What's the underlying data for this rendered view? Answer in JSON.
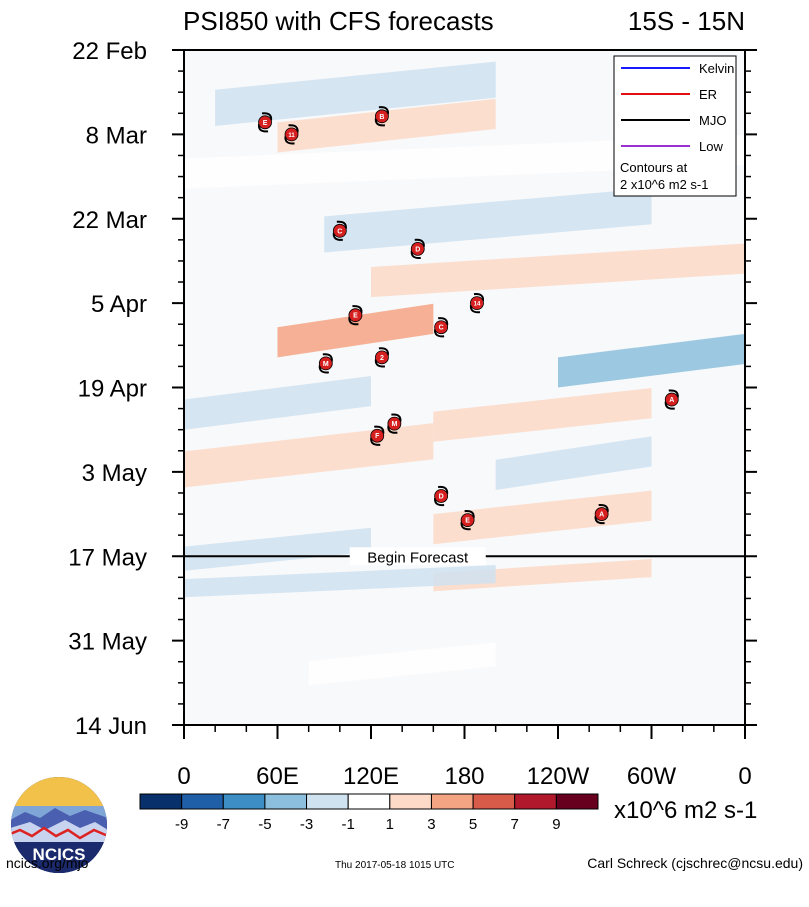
{
  "chart_data": {
    "type": "heatmap",
    "title": "PSI850 with CFS forecasts",
    "region": "15S - 15N",
    "y_tick_labels": [
      "22 Feb",
      "8 Mar",
      "22 Mar",
      "5 Apr",
      "19 Apr",
      "3 May",
      "17 May",
      "31 May",
      "14 Jun"
    ],
    "y_tick_days": [
      0,
      14,
      28,
      42,
      56,
      70,
      84,
      98,
      112
    ],
    "y_range_days": [
      0,
      112
    ],
    "x_tick_labels": [
      "0",
      "60E",
      "120E",
      "180",
      "120W",
      "60W",
      "0"
    ],
    "x_tick_lons": [
      0,
      60,
      120,
      180,
      240,
      300,
      360
    ],
    "x_range_lon": [
      0,
      360
    ],
    "forecast_start_day": 84,
    "forecast_label": "Begin Forecast",
    "legend": {
      "entries": [
        {
          "label": "Kelvin",
          "color": "#1a1aff"
        },
        {
          "label": "ER",
          "color": "#e01010"
        },
        {
          "label": "MJO",
          "color": "#000000"
        },
        {
          "label": "Low",
          "color": "#9a30d0"
        }
      ],
      "note_line1": "Contours at",
      "note_line2": "2 x10^6 m2 s-1"
    },
    "colorbar": {
      "tick_labels": [
        "-9",
        "-7",
        "-5",
        "-3",
        "-1",
        "1",
        "3",
        "5",
        "7",
        "9"
      ],
      "colors": [
        "#08306b",
        "#1f5fa8",
        "#3d8ec4",
        "#8cbfdd",
        "#cfe2f0",
        "#ffffff",
        "#fdd9c7",
        "#f4a383",
        "#d85a48",
        "#b2182b",
        "#67001f"
      ],
      "units": "x10^6 m2 s-1"
    },
    "anomaly_bands": [
      {
        "lon0": 20,
        "lon1": 200,
        "day0": 3,
        "day1": 9,
        "value": -2
      },
      {
        "lon0": 60,
        "lon1": 200,
        "day0": 9,
        "day1": 14,
        "value": 2
      },
      {
        "lon0": 0,
        "lon1": 360,
        "day0": 15,
        "day1": 20,
        "value": 1
      },
      {
        "lon0": 90,
        "lon1": 300,
        "day0": 24,
        "day1": 30,
        "value": -2
      },
      {
        "lon0": 120,
        "lon1": 360,
        "day0": 33,
        "day1": 38,
        "value": 2
      },
      {
        "lon0": 60,
        "lon1": 160,
        "day0": 43,
        "day1": 48,
        "value": 4
      },
      {
        "lon0": 240,
        "lon1": 360,
        "day0": 48,
        "day1": 53,
        "value": -4
      },
      {
        "lon0": 0,
        "lon1": 120,
        "day0": 55,
        "day1": 60,
        "value": -2
      },
      {
        "lon0": 160,
        "lon1": 300,
        "day0": 57,
        "day1": 62,
        "value": 2
      },
      {
        "lon0": 0,
        "lon1": 160,
        "day0": 63,
        "day1": 69,
        "value": 2
      },
      {
        "lon0": 200,
        "lon1": 300,
        "day0": 65,
        "day1": 70,
        "value": -2
      },
      {
        "lon0": 160,
        "lon1": 300,
        "day0": 74,
        "day1": 79,
        "value": 2
      },
      {
        "lon0": 0,
        "lon1": 120,
        "day0": 80,
        "day1": 84,
        "value": -2
      },
      {
        "lon0": 160,
        "lon1": 300,
        "day0": 85,
        "day1": 88,
        "value": 2
      },
      {
        "lon0": 0,
        "lon1": 200,
        "day0": 86,
        "day1": 89,
        "value": -1
      },
      {
        "lon0": 80,
        "lon1": 200,
        "day0": 99,
        "day1": 103,
        "value": 1
      }
    ],
    "storms": [
      {
        "label": "E",
        "lon": 52,
        "day": 12
      },
      {
        "label": "11",
        "lon": 69,
        "day": 14
      },
      {
        "label": "B",
        "lon": 127,
        "day": 11
      },
      {
        "label": "C",
        "lon": 100,
        "day": 30
      },
      {
        "label": "D",
        "lon": 150,
        "day": 33
      },
      {
        "label": "14",
        "lon": 188,
        "day": 42
      },
      {
        "label": "E",
        "lon": 110,
        "day": 44
      },
      {
        "label": "C",
        "lon": 165,
        "day": 46
      },
      {
        "label": "2",
        "lon": 127,
        "day": 51
      },
      {
        "label": "M",
        "lon": 91,
        "day": 52
      },
      {
        "label": "A",
        "lon": 313,
        "day": 58
      },
      {
        "label": "M",
        "lon": 135,
        "day": 62
      },
      {
        "label": "F",
        "lon": 124,
        "day": 64
      },
      {
        "label": "D",
        "lon": 165,
        "day": 74
      },
      {
        "label": "A",
        "lon": 268,
        "day": 77
      },
      {
        "label": "E",
        "lon": 182,
        "day": 78
      }
    ]
  },
  "footer": {
    "site": "ncics.org/mjo",
    "timestamp": "Thu 2017-05-18 1015 UTC",
    "author": "Carl Schreck (cjschrec@ncsu.edu)"
  },
  "logo_text": "NCICS"
}
